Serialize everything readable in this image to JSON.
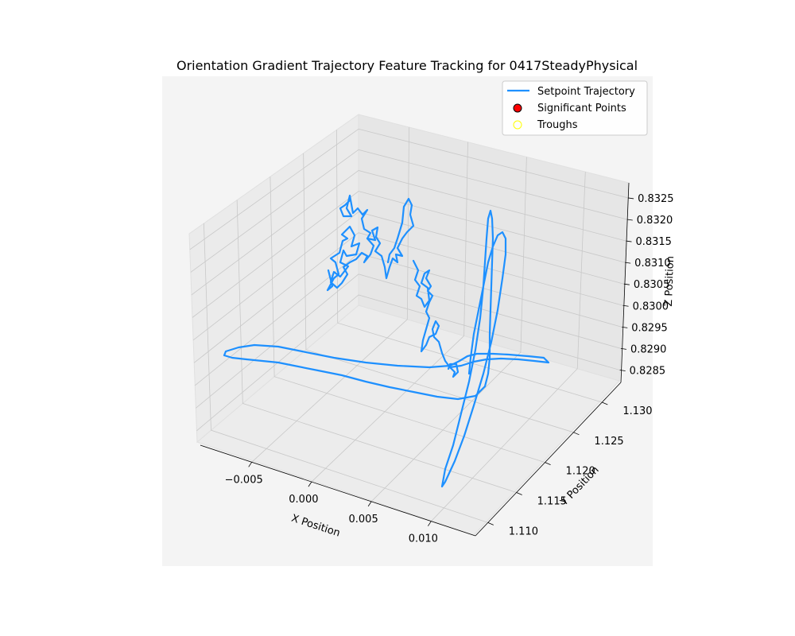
{
  "chart_data": {
    "type": "line",
    "title": "Orientation Gradient Trajectory Feature Tracking for 0417SteadyPhysical",
    "xlabel": "X Position",
    "ylabel": "Y Position",
    "zlabel": "Z Position",
    "x_ticks": [
      "−0.005",
      "0.000",
      "0.005",
      "0.010"
    ],
    "y_ticks": [
      "1.110",
      "1.115",
      "1.120",
      "1.125",
      "1.130"
    ],
    "z_ticks": [
      "0.8285",
      "0.8290",
      "0.8295",
      "0.8300",
      "0.8305",
      "0.8310",
      "0.8315",
      "0.8320",
      "0.8325"
    ],
    "legend": {
      "placement": "top-right",
      "items": [
        {
          "label": "Setpoint Trajectory",
          "kind": "line",
          "color": "#1e90ff"
        },
        {
          "label": "Significant Points",
          "kind": "marker",
          "color": "#ff0000",
          "edge": "#000000"
        },
        {
          "label": "Troughs",
          "kind": "marker",
          "color": "none",
          "edge": "#ffff00"
        }
      ]
    },
    "series": [
      {
        "name": "Setpoint Trajectory",
        "color": "#1e90ff"
      }
    ],
    "grid": true
  }
}
